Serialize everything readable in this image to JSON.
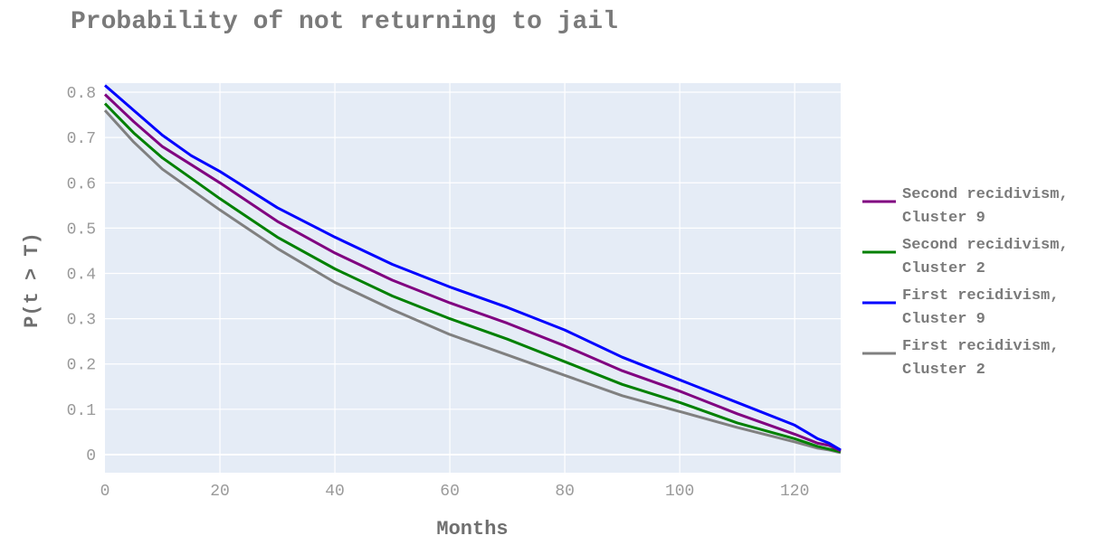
{
  "chart_data": {
    "type": "line",
    "title": "Probability of not returning to jail",
    "xlabel": "Months",
    "ylabel": "P(t > T)",
    "xlim": [
      0,
      128
    ],
    "ylim": [
      -0.04,
      0.82
    ],
    "x_ticks": [
      0,
      20,
      40,
      60,
      80,
      100,
      120
    ],
    "x_tick_labels": [
      "0",
      "20",
      "40",
      "60",
      "80",
      "100",
      "120"
    ],
    "y_ticks": [
      0,
      0.1,
      0.2,
      0.3,
      0.4,
      0.5,
      0.6,
      0.7,
      0.8
    ],
    "y_tick_labels": [
      "0",
      "0.1",
      "0.2",
      "0.3",
      "0.4",
      "0.5",
      "0.6",
      "0.7",
      "0.8"
    ],
    "grid": true,
    "legend_position": "right",
    "x": [
      0,
      5,
      10,
      15,
      20,
      30,
      40,
      50,
      60,
      70,
      80,
      90,
      100,
      110,
      120,
      124,
      126,
      128
    ],
    "series": [
      {
        "name": "Second recidivism,\nCluster 9",
        "color": "#800080",
        "values": [
          0.795,
          0.735,
          0.68,
          0.64,
          0.6,
          0.515,
          0.445,
          0.385,
          0.335,
          0.29,
          0.24,
          0.185,
          0.14,
          0.09,
          0.045,
          0.025,
          0.02,
          0.008
        ]
      },
      {
        "name": "Second recidivism,\nCluster 2",
        "color": "#008000",
        "values": [
          0.775,
          0.71,
          0.655,
          0.61,
          0.565,
          0.48,
          0.41,
          0.35,
          0.3,
          0.255,
          0.205,
          0.155,
          0.115,
          0.07,
          0.035,
          0.018,
          0.012,
          0.006
        ]
      },
      {
        "name": "First recidivism,\nCluster 9",
        "color": "#0000ff",
        "values": [
          0.815,
          0.76,
          0.705,
          0.66,
          0.625,
          0.545,
          0.48,
          0.42,
          0.37,
          0.325,
          0.275,
          0.215,
          0.165,
          0.115,
          0.065,
          0.035,
          0.025,
          0.01
        ]
      },
      {
        "name": "First recidivism,\nCluster 2",
        "color": "#808080",
        "values": [
          0.76,
          0.69,
          0.63,
          0.585,
          0.54,
          0.455,
          0.38,
          0.32,
          0.265,
          0.22,
          0.175,
          0.13,
          0.095,
          0.06,
          0.028,
          0.014,
          0.01,
          0.004
        ]
      }
    ],
    "colors": {
      "plot_background": "#e5ecf6",
      "grid": "#ffffff",
      "text": "#7a7a7a"
    }
  }
}
